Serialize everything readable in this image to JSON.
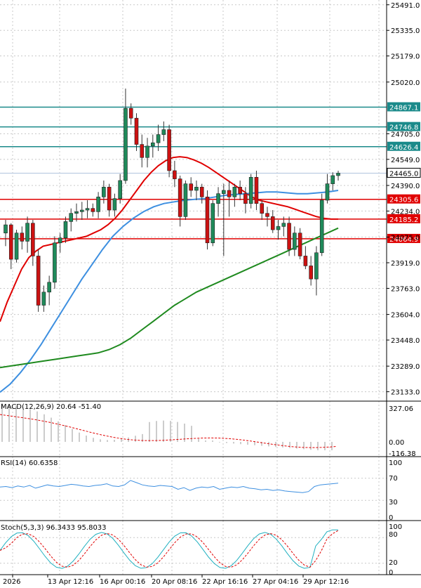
{
  "chart_data": {
    "type": "candlestick",
    "main": {
      "price_axis_labels": [
        "25491.0",
        "25335.0",
        "25179.0",
        "25020.0",
        "24705.0",
        "24549.0",
        "24390.0",
        "24234.0",
        "24075.0",
        "23919.0",
        "23763.0",
        "23604.0",
        "23448.0",
        "23289.0",
        "23133.0"
      ],
      "ylim": [
        23080,
        25520
      ],
      "current_price": "24465.0",
      "horizontal_levels": [
        {
          "value": 24867.1,
          "label": "24867.1",
          "color": "#1a8a8a"
        },
        {
          "value": 24746.8,
          "label": "24746.8",
          "color": "#1a8a8a"
        },
        {
          "value": 24626.4,
          "label": "24626.4",
          "color": "#1a8a8a"
        },
        {
          "value": 24305.6,
          "label": "24305.6",
          "color": "#e00000"
        },
        {
          "value": 24185.2,
          "label": "24185.2",
          "color": "#e00000"
        },
        {
          "value": 24064.9,
          "label": "24064.9",
          "color": "#e00000"
        }
      ],
      "candles": [
        [
          24100,
          24180,
          24020,
          24150
        ],
        [
          24150,
          24160,
          23880,
          23940
        ],
        [
          23940,
          24120,
          23920,
          24100
        ],
        [
          24100,
          24140,
          24000,
          24050
        ],
        [
          24050,
          24200,
          23980,
          24160
        ],
        [
          24160,
          24180,
          23900,
          23960
        ],
        [
          23960,
          24000,
          23620,
          23660
        ],
        [
          23660,
          23780,
          23620,
          23740
        ],
        [
          23740,
          23840,
          23660,
          23800
        ],
        [
          23800,
          24080,
          23760,
          24040
        ],
        [
          24040,
          24100,
          23980,
          24070
        ],
        [
          24070,
          24200,
          24040,
          24170
        ],
        [
          24170,
          24250,
          24110,
          24220
        ],
        [
          24220,
          24280,
          24170,
          24230
        ],
        [
          24230,
          24290,
          24180,
          24240
        ],
        [
          24240,
          24300,
          24190,
          24250
        ],
        [
          24250,
          24280,
          24200,
          24230
        ],
        [
          24230,
          24350,
          24190,
          24320
        ],
        [
          24320,
          24420,
          24280,
          24380
        ],
        [
          24380,
          24400,
          24200,
          24240
        ],
        [
          24240,
          24340,
          24200,
          24310
        ],
        [
          24310,
          24460,
          24280,
          24420
        ],
        [
          24420,
          24980,
          24400,
          24860
        ],
        [
          24860,
          24890,
          24760,
          24800
        ],
        [
          24800,
          24830,
          24600,
          24640
        ],
        [
          24640,
          24700,
          24500,
          24560
        ],
        [
          24560,
          24680,
          24500,
          24630
        ],
        [
          24630,
          24700,
          24560,
          24650
        ],
        [
          24650,
          24760,
          24600,
          24700
        ],
        [
          24700,
          24780,
          24660,
          24730
        ],
        [
          24730,
          24760,
          24440,
          24480
        ],
        [
          24480,
          24540,
          24380,
          24430
        ],
        [
          24430,
          24450,
          24140,
          24200
        ],
        [
          24200,
          24420,
          24180,
          24400
        ],
        [
          24400,
          24440,
          24320,
          24360
        ],
        [
          24360,
          24420,
          24300,
          24380
        ],
        [
          24380,
          24400,
          24280,
          24320
        ],
        [
          24320,
          24360,
          24000,
          24040
        ],
        [
          24040,
          24300,
          24020,
          24280
        ],
        [
          24280,
          24380,
          24200,
          24340
        ],
        [
          24340,
          24400,
          23960,
          24360
        ],
        [
          24360,
          24420,
          24200,
          24320
        ],
        [
          24320,
          24400,
          24260,
          24380
        ],
        [
          24380,
          24420,
          24300,
          24340
        ],
        [
          24340,
          24380,
          24220,
          24280
        ],
        [
          24280,
          24460,
          24250,
          24440
        ],
        [
          24440,
          24480,
          24240,
          24280
        ],
        [
          24280,
          24300,
          24180,
          24220
        ],
        [
          24220,
          24260,
          24140,
          24200
        ],
        [
          24200,
          24240,
          24100,
          24120
        ],
        [
          24120,
          24180,
          24060,
          24140
        ],
        [
          24140,
          24200,
          24080,
          24160
        ],
        [
          24160,
          24200,
          23960,
          24000
        ],
        [
          24000,
          24140,
          23960,
          24100
        ],
        [
          24100,
          24130,
          23940,
          23960
        ],
        [
          23960,
          24020,
          23880,
          23900
        ],
        [
          23900,
          23960,
          23780,
          23820
        ],
        [
          23820,
          24020,
          23720,
          23980
        ],
        [
          23980,
          24340,
          23960,
          24300
        ],
        [
          24300,
          24460,
          24280,
          24400
        ],
        [
          24400,
          24470,
          24360,
          24450
        ],
        [
          24450,
          24480,
          24420,
          24465
        ]
      ],
      "ma_series": [
        {
          "name": "",
          "color": "#e00000",
          "values": [
            23560,
            23680,
            23780,
            23880,
            23950,
            23990,
            24020,
            24030,
            24040,
            24050,
            24060,
            24070,
            24080,
            24100,
            24120,
            24150,
            24190,
            24240,
            24300,
            24360,
            24420,
            24470,
            24510,
            24540,
            24560,
            24565,
            24560,
            24545,
            24525,
            24500,
            24470,
            24440,
            24410,
            24380,
            24350,
            24320,
            24300,
            24290,
            24280,
            24270,
            24260,
            24245,
            24230,
            24215,
            24200,
            24190,
            24185,
            24185
          ]
        },
        {
          "name": "",
          "color": "#3d8fe0",
          "values": [
            23130,
            23180,
            23250,
            23330,
            23420,
            23520,
            23620,
            23720,
            23820,
            23910,
            24000,
            24080,
            24140,
            24190,
            24230,
            24260,
            24280,
            24290,
            24300,
            24305,
            24310,
            24320,
            24330,
            24335,
            24340,
            24345,
            24350,
            24350,
            24345,
            24340,
            24340,
            24345,
            24350,
            24360
          ]
        },
        {
          "name": "",
          "color": "#1f8a1f",
          "values": [
            23280,
            23290,
            23300,
            23310,
            23320,
            23330,
            23340,
            23350,
            23360,
            23370,
            23390,
            23420,
            23460,
            23510,
            23560,
            23610,
            23660,
            23700,
            23740,
            23770,
            23800,
            23830,
            23860,
            23890,
            23920,
            23950,
            23980,
            24010,
            24040,
            24070,
            24100,
            24130
          ]
        }
      ]
    },
    "macd": {
      "label": "MACD(12,26,9) 20.64 -51.40",
      "axis_labels": [
        "327.06",
        "0.00",
        "-116.38"
      ]
    },
    "rsi": {
      "label": "RSI(14) 60.6358",
      "axis_labels": [
        "100",
        "70",
        "30",
        "0"
      ]
    },
    "stoch": {
      "label": "Stoch(5,3,3) 96.3433 95.8033",
      "axis_labels": [
        "100",
        "80",
        "20",
        "0"
      ]
    },
    "time_labels": [
      "2026",
      "13 Apr 12:16",
      "16 Apr 00:16",
      "20 Apr 08:16",
      "22 Apr 16:16",
      "27 Apr 04:16",
      "29 Apr 12:16"
    ],
    "time_label_prefix": "Apr"
  },
  "colors": {
    "bull": "#1f8a5a",
    "bear": "#cc1111",
    "grid": "#c8c8c8"
  }
}
